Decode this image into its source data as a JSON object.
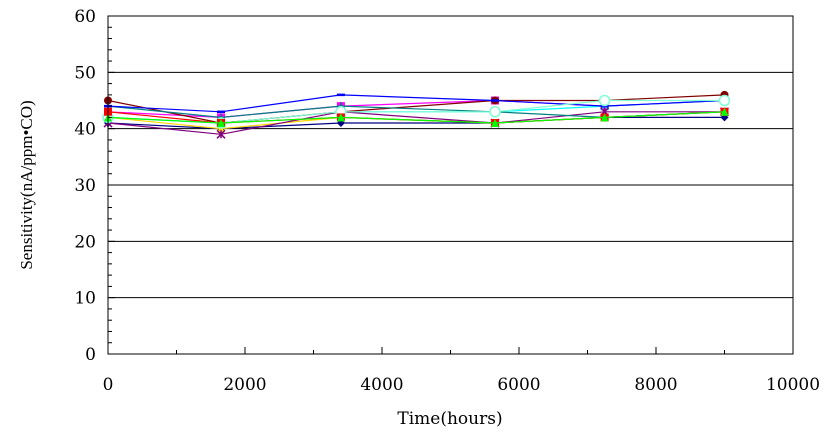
{
  "chart_data": {
    "type": "line",
    "xlabel": "Time(hours)",
    "ylabel": "Sensitivity(nA/ppm•CO)",
    "xlim": [
      0,
      10000
    ],
    "ylim": [
      0,
      60
    ],
    "xticks": [
      "0",
      "2000",
      "4000",
      "6000",
      "8000",
      "10000"
    ],
    "yticks": [
      "0",
      "10",
      "20",
      "30",
      "40",
      "50",
      "60"
    ],
    "grid": "horizontal major lines",
    "legend": "none",
    "x": [
      0,
      1650,
      3400,
      5650,
      7250,
      9000
    ],
    "series": [
      {
        "color": "#000080",
        "marker": "diamond",
        "values": [
          41,
          40,
          41,
          41,
          42,
          42
        ]
      },
      {
        "color": "#ff00ff",
        "marker": "square",
        "values": [
          43,
          42,
          44,
          45,
          44,
          45
        ]
      },
      {
        "color": "#ffd700",
        "marker": "triangle",
        "values": [
          42,
          40,
          42,
          41,
          42,
          43
        ]
      },
      {
        "color": "#00ffff",
        "marker": "x",
        "values": [
          42,
          41,
          43,
          43,
          44,
          45
        ]
      },
      {
        "color": "#800080",
        "marker": "asterisk",
        "values": [
          41,
          39,
          43,
          41,
          43,
          43
        ]
      },
      {
        "color": "#800000",
        "marker": "circle",
        "values": [
          45,
          41,
          43,
          45,
          45,
          46
        ]
      },
      {
        "color": "#008080",
        "marker": "plus",
        "values": [
          44,
          42,
          44,
          43,
          42,
          43
        ]
      },
      {
        "color": "#0000ff",
        "marker": "dash",
        "values": [
          44,
          43,
          46,
          45,
          44,
          45
        ]
      },
      {
        "color": "#7fffd4",
        "marker": "circle-open",
        "values": [
          42,
          41,
          43,
          43,
          45,
          45
        ]
      },
      {
        "color": "#ff0000",
        "marker": "square",
        "values": [
          43,
          41,
          42,
          41,
          42,
          43
        ]
      },
      {
        "color": "#00ff00",
        "marker": "triangle",
        "values": [
          42,
          41,
          42,
          41,
          42,
          43
        ]
      }
    ]
  }
}
